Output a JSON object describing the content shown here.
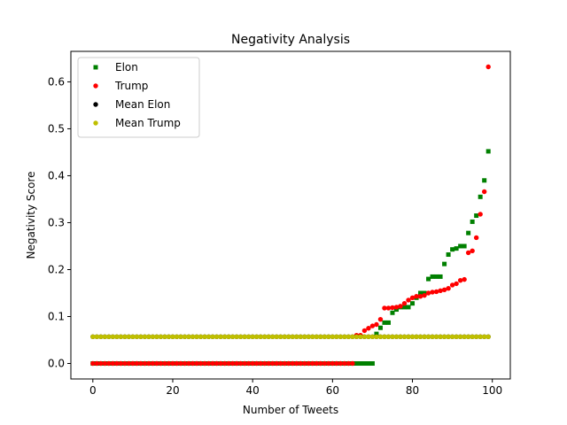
{
  "chart_data": {
    "type": "scatter",
    "title": "Negativity Analysis",
    "xlabel": "Number of Tweets",
    "ylabel": "Negativity Score",
    "xlim": [
      -5.5,
      104.5
    ],
    "ylim": [
      -0.033,
      0.665
    ],
    "xticks": [
      0,
      20,
      40,
      60,
      80,
      100
    ],
    "xtick_labels": [
      "0",
      "20",
      "40",
      "60",
      "80",
      "100"
    ],
    "yticks": [
      0.0,
      0.1,
      0.2,
      0.3,
      0.4,
      0.5,
      0.6
    ],
    "ytick_labels": [
      "0.0",
      "0.1",
      "0.2",
      "0.3",
      "0.4",
      "0.5",
      "0.6"
    ],
    "grid": false,
    "legend_position": "top-left",
    "series": [
      {
        "name": "Elon",
        "marker": "square",
        "color": "#008000",
        "x_start": 0,
        "values": [
          0,
          0,
          0,
          0,
          0,
          0,
          0,
          0,
          0,
          0,
          0,
          0,
          0,
          0,
          0,
          0,
          0,
          0,
          0,
          0,
          0,
          0,
          0,
          0,
          0,
          0,
          0,
          0,
          0,
          0,
          0,
          0,
          0,
          0,
          0,
          0,
          0,
          0,
          0,
          0,
          0,
          0,
          0,
          0,
          0,
          0,
          0,
          0,
          0,
          0,
          0,
          0,
          0,
          0,
          0,
          0,
          0,
          0,
          0,
          0,
          0,
          0,
          0,
          0,
          0,
          0,
          0,
          0,
          0,
          0,
          0,
          0.063,
          0.076,
          0.087,
          0.087,
          0.108,
          0.115,
          0.12,
          0.12,
          0.12,
          0.128,
          0.14,
          0.15,
          0.15,
          0.18,
          0.185,
          0.185,
          0.185,
          0.212,
          0.232,
          0.243,
          0.245,
          0.25,
          0.25,
          0.278,
          0.302,
          0.315,
          0.355,
          0.39,
          0.452
        ]
      },
      {
        "name": "Trump",
        "marker": "circle",
        "color": "#ff0000",
        "x_start": 0,
        "values": [
          0,
          0,
          0,
          0,
          0,
          0,
          0,
          0,
          0,
          0,
          0,
          0,
          0,
          0,
          0,
          0,
          0,
          0,
          0,
          0,
          0,
          0,
          0,
          0,
          0,
          0,
          0,
          0,
          0,
          0,
          0,
          0,
          0,
          0,
          0,
          0,
          0,
          0,
          0,
          0,
          0,
          0,
          0,
          0,
          0,
          0,
          0,
          0,
          0,
          0,
          0,
          0,
          0,
          0,
          0,
          0,
          0,
          0,
          0,
          0,
          0,
          0,
          0,
          0,
          0,
          0,
          0.06,
          0.06,
          0.07,
          0.075,
          0.08,
          0.083,
          0.094,
          0.118,
          0.118,
          0.119,
          0.12,
          0.122,
          0.128,
          0.135,
          0.14,
          0.143,
          0.143,
          0.145,
          0.15,
          0.152,
          0.153,
          0.155,
          0.157,
          0.16,
          0.167,
          0.17,
          0.177,
          0.179,
          0.236,
          0.24,
          0.268,
          0.318,
          0.366,
          0.632
        ]
      },
      {
        "name": "Mean Elon",
        "marker": "circle",
        "color": "#000000",
        "x_start": 0,
        "count": 100,
        "constant": 0.057
      },
      {
        "name": "Mean Trump",
        "marker": "circle",
        "color": "#bfbf00",
        "x_start": 0,
        "count": 100,
        "constant": 0.057
      }
    ]
  }
}
